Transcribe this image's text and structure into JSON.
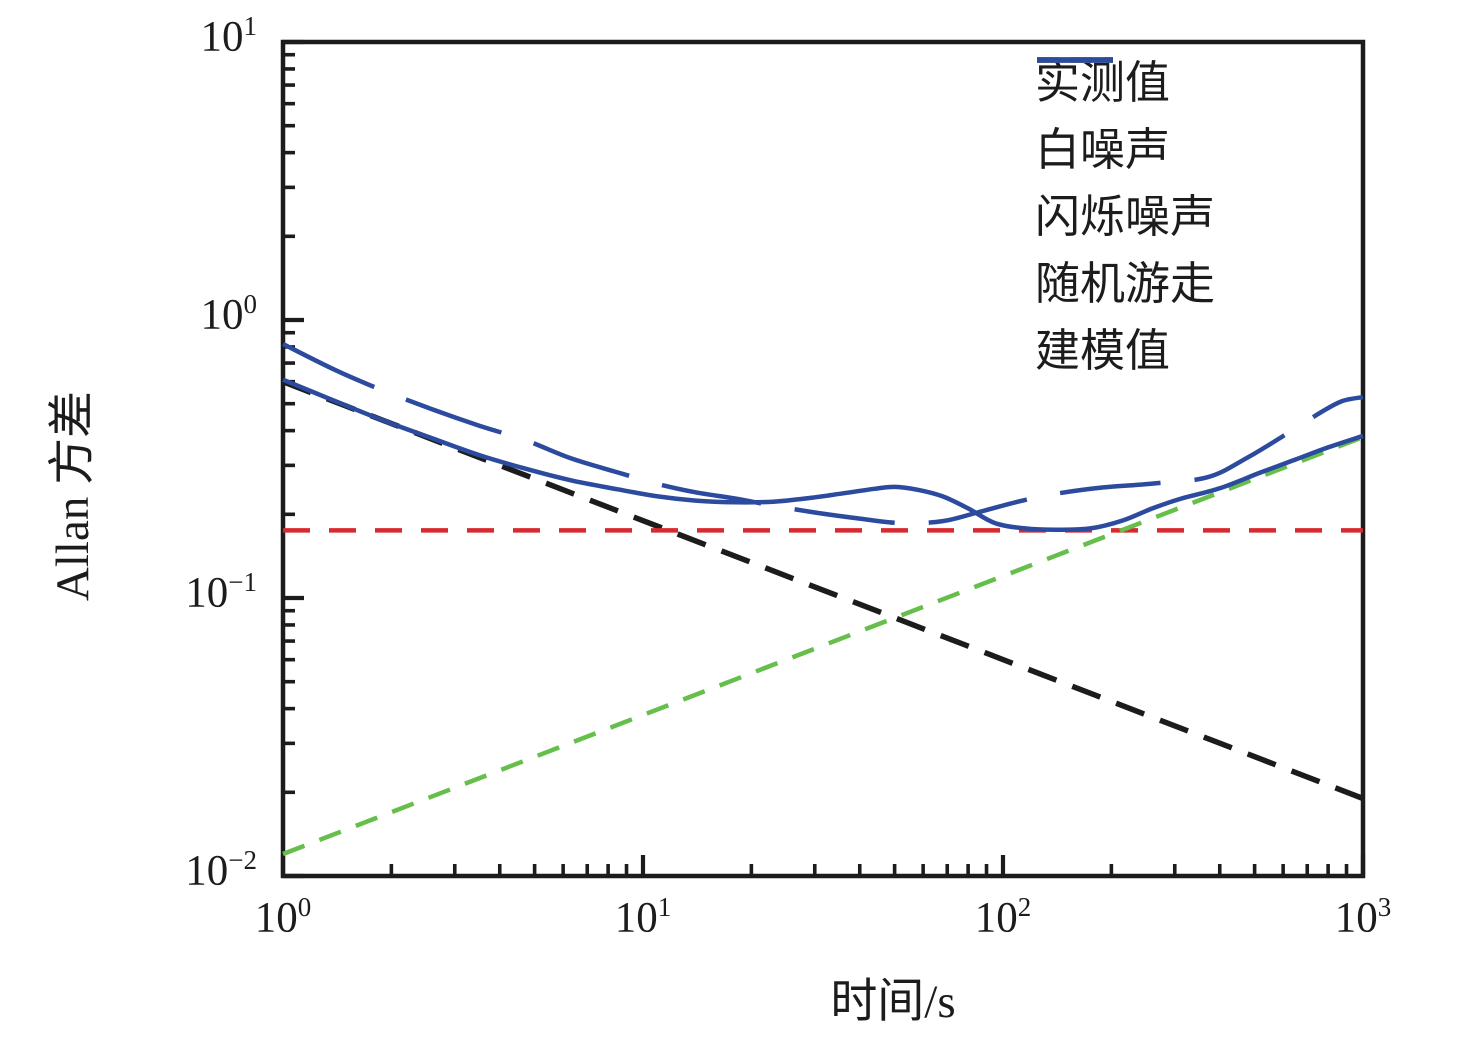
{
  "figure": {
    "background": "#ffffff"
  },
  "chart_data": {
    "type": "line",
    "title": "",
    "xlabel": "时间/s",
    "ylabel": "Allan 方差",
    "x_scale": "log",
    "y_scale": "log",
    "xlim": [
      1,
      1000
    ],
    "ylim": [
      0.01,
      10
    ],
    "x_tick_exponents": [
      0,
      1,
      2,
      3
    ],
    "y_tick_exponents": [
      -2,
      -1,
      0,
      1
    ],
    "grid": false,
    "legend_position": "top-right",
    "frame": "box",
    "colors": {
      "blue": "#2c4b9e",
      "black": "#1c1c1c",
      "red": "#d8292e",
      "green": "#66bf4a"
    },
    "series": [
      {
        "key": "measured",
        "name": "实测值",
        "color": "blue",
        "style": "solid",
        "legend_style": "solid",
        "x": [
          1,
          1.4,
          1.9,
          2.6,
          3.5,
          4.7,
          6.3,
          8.5,
          11,
          14,
          18,
          23,
          29,
          36,
          44,
          50,
          58,
          68,
          80,
          95,
          115,
          140,
          175,
          215,
          260,
          310,
          400,
          520,
          650,
          800,
          1000
        ],
        "y": [
          0.61,
          0.51,
          0.435,
          0.375,
          0.327,
          0.292,
          0.265,
          0.246,
          0.232,
          0.224,
          0.221,
          0.222,
          0.229,
          0.238,
          0.247,
          0.251,
          0.245,
          0.232,
          0.21,
          0.186,
          0.178,
          0.176,
          0.178,
          0.19,
          0.21,
          0.227,
          0.248,
          0.283,
          0.315,
          0.348,
          0.383
        ]
      },
      {
        "key": "white-noise",
        "name": "白噪声",
        "color": "black",
        "style": "dashed",
        "legend_style": "dashed",
        "x": [
          1,
          1000
        ],
        "y": [
          0.6,
          0.019
        ]
      },
      {
        "key": "flicker-noise",
        "name": "闪烁噪声",
        "color": "red",
        "style": "dashed",
        "legend_style": "dashed",
        "x": [
          1,
          1000
        ],
        "y": [
          0.175,
          0.175
        ]
      },
      {
        "key": "random-walk",
        "name": "随机游走",
        "color": "green",
        "style": "dashed",
        "legend_style": "dashed",
        "x": [
          1,
          1000
        ],
        "y": [
          0.012,
          0.379
        ]
      },
      {
        "key": "modeled",
        "name": "建模值",
        "color": "blue",
        "style": "long-dash",
        "legend_style": "solid",
        "x": [
          1,
          1.4,
          1.9,
          2.6,
          3.5,
          4.7,
          6.3,
          8.5,
          11,
          14,
          18,
          23,
          30,
          40,
          52,
          68,
          86,
          110,
          140,
          190,
          260,
          370,
          480,
          625,
          765,
          875,
          1000
        ],
        "y": [
          0.82,
          0.66,
          0.557,
          0.477,
          0.417,
          0.37,
          0.318,
          0.283,
          0.257,
          0.24,
          0.228,
          0.215,
          0.203,
          0.193,
          0.186,
          0.189,
          0.204,
          0.222,
          0.237,
          0.25,
          0.258,
          0.272,
          0.321,
          0.395,
          0.466,
          0.511,
          0.528
        ]
      }
    ]
  }
}
